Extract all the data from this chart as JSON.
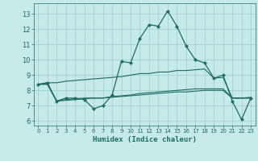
{
  "xlabel": "Humidex (Indice chaleur)",
  "xlim": [
    -0.5,
    23.5
  ],
  "ylim": [
    5.7,
    13.7
  ],
  "yticks": [
    6,
    7,
    8,
    9,
    10,
    11,
    12,
    13
  ],
  "xticks": [
    0,
    1,
    2,
    3,
    4,
    5,
    6,
    7,
    8,
    9,
    10,
    11,
    12,
    13,
    14,
    15,
    16,
    17,
    18,
    19,
    20,
    21,
    22,
    23
  ],
  "bg_color": "#c5eae7",
  "grid_color": "#9dcfcb",
  "line_color": "#1f6b65",
  "series_main": [
    8.4,
    8.5,
    7.3,
    7.5,
    7.5,
    7.4,
    6.8,
    7.0,
    7.7,
    9.9,
    9.8,
    11.4,
    12.3,
    12.2,
    13.2,
    12.2,
    10.9,
    10.0,
    9.8,
    8.8,
    9.0,
    7.3,
    6.1,
    7.5
  ],
  "series_rise": [
    8.4,
    8.5,
    8.5,
    8.6,
    8.65,
    8.7,
    8.75,
    8.8,
    8.85,
    8.9,
    9.0,
    9.1,
    9.1,
    9.2,
    9.2,
    9.3,
    9.3,
    9.35,
    9.4,
    8.8,
    8.85,
    7.5,
    7.5,
    7.55
  ],
  "series_mid1": [
    8.4,
    8.4,
    7.3,
    7.4,
    7.45,
    7.5,
    7.5,
    7.5,
    7.6,
    7.65,
    7.7,
    7.8,
    7.85,
    7.9,
    7.95,
    8.0,
    8.05,
    8.1,
    8.1,
    8.1,
    8.1,
    7.5,
    7.5,
    7.5
  ],
  "series_mid2": [
    8.4,
    8.4,
    7.3,
    7.35,
    7.4,
    7.45,
    7.5,
    7.5,
    7.55,
    7.6,
    7.65,
    7.7,
    7.75,
    7.8,
    7.85,
    7.9,
    7.9,
    7.95,
    8.0,
    8.0,
    8.0,
    7.5,
    7.5,
    7.5
  ]
}
